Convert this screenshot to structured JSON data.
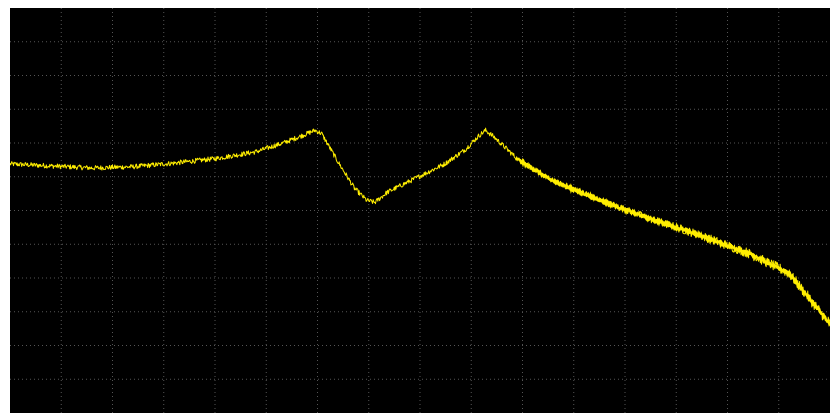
{
  "colors": {
    "background": "#000000",
    "frame": "#ffffff",
    "grid": "#555555",
    "trace": "#ffee00"
  },
  "display": {
    "grid": true,
    "grid_style": "dotted",
    "grid_columns": 16,
    "grid_rows": 12
  },
  "chart_data": {
    "type": "line",
    "xlim": [
      0,
      1
    ],
    "ylim": [
      0,
      1
    ],
    "title": "",
    "xlabel": "",
    "ylabel": "",
    "series": [
      {
        "color": "#ffee00",
        "points": [
          [
            0.0,
            0.615
          ],
          [
            0.05,
            0.61
          ],
          [
            0.1,
            0.605
          ],
          [
            0.15,
            0.608
          ],
          [
            0.2,
            0.617
          ],
          [
            0.25,
            0.628
          ],
          [
            0.3,
            0.645
          ],
          [
            0.335,
            0.668
          ],
          [
            0.36,
            0.688
          ],
          [
            0.372,
            0.698
          ],
          [
            0.38,
            0.69
          ],
          [
            0.4,
            0.62
          ],
          [
            0.42,
            0.555
          ],
          [
            0.435,
            0.525
          ],
          [
            0.445,
            0.52
          ],
          [
            0.46,
            0.545
          ],
          [
            0.5,
            0.585
          ],
          [
            0.53,
            0.615
          ],
          [
            0.555,
            0.65
          ],
          [
            0.572,
            0.685
          ],
          [
            0.58,
            0.698
          ],
          [
            0.59,
            0.682
          ],
          [
            0.62,
            0.625
          ],
          [
            0.66,
            0.575
          ],
          [
            0.72,
            0.525
          ],
          [
            0.78,
            0.48
          ],
          [
            0.84,
            0.44
          ],
          [
            0.9,
            0.395
          ],
          [
            0.95,
            0.345
          ],
          [
            1.0,
            0.22
          ]
        ]
      }
    ]
  }
}
